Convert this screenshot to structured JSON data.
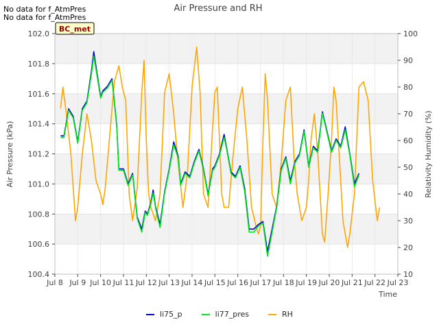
{
  "header": {
    "nodata_lines": [
      "No data for f_AtmPres",
      "No data for f_AtmPres"
    ],
    "site_badge": "BC_met"
  },
  "chart_data": {
    "type": "line",
    "title": "Air Pressure and RH",
    "xlabel": "Time",
    "ylabel": "Air Pressure (kPa)",
    "y2label": "Relativity Humidity (%)",
    "xlim": [
      0,
      15
    ],
    "ylim": [
      100.4,
      102.0
    ],
    "y2lim": [
      10,
      100
    ],
    "x_tick_values": [
      0,
      1,
      2,
      3,
      4,
      5,
      6,
      7,
      8,
      9,
      10,
      11,
      12,
      13,
      14,
      15
    ],
    "x_tick_labels": [
      "Jul 8",
      "Jul 9",
      "Jul 10",
      "Jul 11",
      "Jul 12",
      "Jul 13",
      "Jul 14",
      "Jul 15",
      "Jul 16",
      "Jul 17",
      "Jul 18",
      "Jul 19",
      "Jul 20",
      "Jul 21",
      "Jul 22",
      "Jul 23"
    ],
    "y_ticks": [
      "100.4",
      "100.6",
      "100.8",
      "101.0",
      "101.2",
      "101.4",
      "101.6",
      "101.8",
      "102.0"
    ],
    "y2_ticks": [
      "10",
      "20",
      "30",
      "40",
      "50",
      "60",
      "70",
      "80",
      "90",
      "100"
    ],
    "grid": true,
    "band_color": "#f2f2f2",
    "legend_position": "bottom-center",
    "series": [
      {
        "name": "li75_p",
        "axis": "left",
        "color": "#0000cc",
        "x": [
          0.25,
          0.4,
          0.6,
          0.8,
          1.0,
          1.2,
          1.4,
          1.6,
          1.7,
          1.8,
          2.0,
          2.1,
          2.3,
          2.5,
          2.7,
          2.8,
          3.0,
          3.2,
          3.4,
          3.6,
          3.8,
          3.95,
          4.05,
          4.2,
          4.3,
          4.4,
          4.6,
          4.8,
          5.0,
          5.2,
          5.4,
          5.5,
          5.7,
          5.9,
          6.1,
          6.3,
          6.5,
          6.7,
          6.9,
          7.0,
          7.2,
          7.4,
          7.5,
          7.7,
          7.9,
          8.1,
          8.3,
          8.5,
          8.7,
          8.9,
          9.1,
          9.3,
          9.5,
          9.7,
          9.9,
          10.1,
          10.3,
          10.5,
          10.7,
          10.9,
          11.1,
          11.3,
          11.5,
          11.7,
          11.9,
          12.1,
          12.3,
          12.5,
          12.7,
          12.9,
          13.1,
          13.3,
          13.5,
          13.7,
          13.9,
          14.1,
          14.25
        ],
        "y": [
          101.32,
          101.32,
          101.5,
          101.45,
          101.28,
          101.5,
          101.55,
          101.75,
          101.88,
          101.78,
          101.58,
          101.62,
          101.65,
          101.7,
          101.4,
          101.1,
          101.1,
          101.0,
          101.07,
          100.78,
          100.7,
          100.82,
          100.8,
          100.88,
          100.96,
          100.85,
          100.73,
          100.95,
          101.1,
          101.28,
          101.18,
          101.0,
          101.08,
          101.05,
          101.15,
          101.23,
          101.1,
          100.93,
          101.1,
          101.12,
          101.2,
          101.33,
          101.25,
          101.08,
          101.05,
          101.12,
          100.97,
          100.7,
          100.7,
          100.73,
          100.75,
          100.55,
          100.7,
          100.85,
          101.1,
          101.18,
          101.02,
          101.15,
          101.2,
          101.36,
          101.12,
          101.25,
          101.22,
          101.48,
          101.35,
          101.22,
          101.3,
          101.25,
          101.38,
          101.2,
          101.0,
          101.07,
          null,
          null,
          null,
          null,
          null
        ]
      },
      {
        "name": "li77_pres",
        "axis": "left",
        "color": "#00e61a",
        "x": [
          0.25,
          0.4,
          0.6,
          0.8,
          1.0,
          1.2,
          1.4,
          1.6,
          1.7,
          1.8,
          2.0,
          2.1,
          2.3,
          2.5,
          2.7,
          2.8,
          3.0,
          3.2,
          3.4,
          3.6,
          3.8,
          3.95,
          4.05,
          4.2,
          4.3,
          4.4,
          4.6,
          4.8,
          5.0,
          5.2,
          5.4,
          5.5,
          5.7,
          5.9,
          6.1,
          6.3,
          6.5,
          6.7,
          6.9,
          7.0,
          7.2,
          7.4,
          7.5,
          7.7,
          7.9,
          8.1,
          8.3,
          8.5,
          8.7,
          8.9,
          9.1,
          9.3,
          9.5,
          9.7,
          9.9,
          10.1,
          10.3,
          10.5,
          10.7,
          10.9,
          11.1,
          11.3,
          11.5,
          11.7,
          11.9,
          12.1,
          12.3,
          12.5,
          12.7,
          12.9,
          13.1,
          13.3,
          13.5,
          13.7,
          13.9,
          14.1,
          14.25
        ],
        "y": [
          101.31,
          101.31,
          101.49,
          101.44,
          101.27,
          101.49,
          101.54,
          101.73,
          101.85,
          101.76,
          101.57,
          101.61,
          101.64,
          101.69,
          101.39,
          101.09,
          101.09,
          100.99,
          101.06,
          100.77,
          100.68,
          100.81,
          100.79,
          100.87,
          100.94,
          100.84,
          100.71,
          100.94,
          101.09,
          101.26,
          101.17,
          100.99,
          101.07,
          101.04,
          101.14,
          101.22,
          101.09,
          100.92,
          101.09,
          101.11,
          101.19,
          101.31,
          101.24,
          101.07,
          101.04,
          101.11,
          100.95,
          100.68,
          100.68,
          100.72,
          100.74,
          100.52,
          100.68,
          100.84,
          101.09,
          101.17,
          101.0,
          101.14,
          101.19,
          101.35,
          101.11,
          101.24,
          101.21,
          101.47,
          101.34,
          101.21,
          101.29,
          101.24,
          101.36,
          101.19,
          100.98,
          101.06,
          null,
          null,
          null,
          null,
          null
        ]
      },
      {
        "name": "RH",
        "axis": "right",
        "color": "#ffa500",
        "x": [
          0.25,
          0.35,
          0.5,
          0.7,
          0.9,
          1.0,
          1.2,
          1.4,
          1.6,
          1.8,
          2.0,
          2.1,
          2.2,
          2.4,
          2.6,
          2.8,
          2.95,
          3.1,
          3.25,
          3.4,
          3.6,
          3.8,
          3.9,
          4.0,
          4.1,
          4.2,
          4.4,
          4.6,
          4.8,
          5.0,
          5.2,
          5.35,
          5.6,
          5.8,
          6.0,
          6.2,
          6.35,
          6.5,
          6.7,
          6.9,
          7.0,
          7.1,
          7.2,
          7.3,
          7.4,
          7.6,
          7.8,
          8.0,
          8.2,
          8.4,
          8.6,
          8.8,
          8.9,
          9.0,
          9.1,
          9.2,
          9.3,
          9.5,
          9.7,
          9.9,
          10.1,
          10.3,
          10.45,
          10.6,
          10.8,
          11.0,
          11.1,
          11.2,
          11.35,
          11.5,
          11.7,
          11.8,
          11.95,
          12.1,
          12.2,
          12.3,
          12.4,
          12.5,
          12.6,
          12.8,
          12.9,
          13.1,
          13.3,
          13.5,
          13.7,
          13.9,
          14.1,
          14.2
        ],
        "y": [
          72,
          80,
          70,
          55,
          30,
          35,
          55,
          70,
          60,
          45,
          40,
          36,
          42,
          62,
          82,
          88,
          80,
          75,
          40,
          30,
          42,
          78,
          90,
          60,
          40,
          35,
          30,
          40,
          78,
          85,
          70,
          55,
          35,
          48,
          80,
          95,
          78,
          40,
          35,
          65,
          78,
          80,
          60,
          40,
          35,
          35,
          55,
          72,
          80,
          60,
          35,
          28,
          25,
          28,
          60,
          85,
          75,
          40,
          35,
          52,
          75,
          80,
          55,
          40,
          30,
          35,
          45,
          60,
          70,
          55,
          25,
          22,
          40,
          60,
          80,
          75,
          60,
          45,
          30,
          20,
          25,
          40,
          80,
          82,
          75,
          45,
          30,
          35
        ]
      }
    ]
  }
}
